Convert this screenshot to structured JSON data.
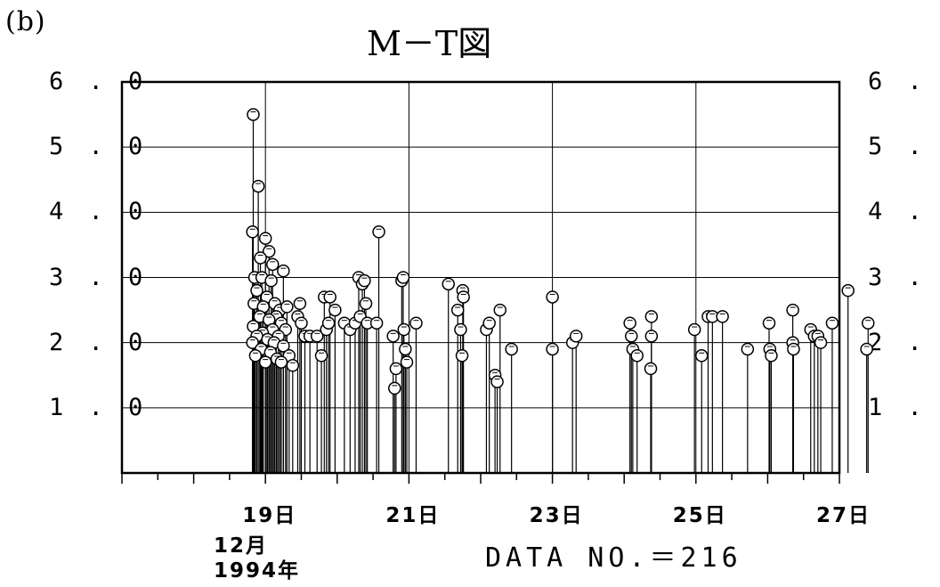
{
  "panel_label": "(b)",
  "chart_data": {
    "type": "scatter",
    "title": "M－T図",
    "xlabel": "",
    "ylabel": "",
    "xlim": [
      17.0,
      27.0
    ],
    "ylim": [
      0.0,
      6.0
    ],
    "grid": true,
    "stem": true,
    "y_ticks": [
      "6.0",
      "5.0",
      "4.0",
      "3.0",
      "2.0",
      "1.0"
    ],
    "y_ticks_right": [
      "6.0",
      "5.0",
      "4.0",
      "3.0",
      "2.0",
      "1.0"
    ],
    "x_tick_labels": [
      "19日",
      "21日",
      "23日",
      "25日",
      "27日"
    ],
    "x_sublabels": [
      "12月",
      "1994年"
    ],
    "annotation": "DATA NO.＝216",
    "points": [
      {
        "x": 18.83,
        "y": 5.5
      },
      {
        "x": 18.9,
        "y": 4.4
      },
      {
        "x": 18.82,
        "y": 3.7
      },
      {
        "x": 19.0,
        "y": 3.6
      },
      {
        "x": 19.05,
        "y": 3.4
      },
      {
        "x": 18.93,
        "y": 3.3
      },
      {
        "x": 19.1,
        "y": 3.2
      },
      {
        "x": 19.25,
        "y": 3.1
      },
      {
        "x": 18.85,
        "y": 3.0
      },
      {
        "x": 18.95,
        "y": 3.0
      },
      {
        "x": 19.08,
        "y": 2.95
      },
      {
        "x": 18.88,
        "y": 2.8
      },
      {
        "x": 19.02,
        "y": 2.7
      },
      {
        "x": 19.13,
        "y": 2.6
      },
      {
        "x": 18.84,
        "y": 2.6
      },
      {
        "x": 18.97,
        "y": 2.55
      },
      {
        "x": 19.2,
        "y": 2.5
      },
      {
        "x": 19.3,
        "y": 2.55
      },
      {
        "x": 19.15,
        "y": 2.4
      },
      {
        "x": 18.92,
        "y": 2.4
      },
      {
        "x": 19.05,
        "y": 2.35
      },
      {
        "x": 19.22,
        "y": 2.3
      },
      {
        "x": 18.83,
        "y": 2.25
      },
      {
        "x": 19.1,
        "y": 2.2
      },
      {
        "x": 18.96,
        "y": 2.15
      },
      {
        "x": 19.28,
        "y": 2.2
      },
      {
        "x": 18.88,
        "y": 2.1
      },
      {
        "x": 19.18,
        "y": 2.1
      },
      {
        "x": 19.03,
        "y": 2.05
      },
      {
        "x": 18.82,
        "y": 2.0
      },
      {
        "x": 19.12,
        "y": 2.0
      },
      {
        "x": 19.25,
        "y": 1.95
      },
      {
        "x": 18.94,
        "y": 1.9
      },
      {
        "x": 19.07,
        "y": 1.85
      },
      {
        "x": 19.33,
        "y": 1.8
      },
      {
        "x": 18.86,
        "y": 1.8
      },
      {
        "x": 19.16,
        "y": 1.75
      },
      {
        "x": 19.0,
        "y": 1.7
      },
      {
        "x": 19.38,
        "y": 1.65
      },
      {
        "x": 19.22,
        "y": 1.7
      },
      {
        "x": 19.48,
        "y": 2.6
      },
      {
        "x": 19.45,
        "y": 2.4
      },
      {
        "x": 19.5,
        "y": 2.3
      },
      {
        "x": 19.55,
        "y": 2.1
      },
      {
        "x": 19.62,
        "y": 2.1
      },
      {
        "x": 19.72,
        "y": 2.1
      },
      {
        "x": 19.78,
        "y": 1.8
      },
      {
        "x": 19.85,
        "y": 2.2
      },
      {
        "x": 19.82,
        "y": 2.7
      },
      {
        "x": 19.9,
        "y": 2.7
      },
      {
        "x": 19.88,
        "y": 2.3
      },
      {
        "x": 19.97,
        "y": 2.5
      },
      {
        "x": 20.1,
        "y": 2.3
      },
      {
        "x": 20.18,
        "y": 2.2
      },
      {
        "x": 20.25,
        "y": 2.3
      },
      {
        "x": 20.3,
        "y": 3.0
      },
      {
        "x": 20.35,
        "y": 2.9
      },
      {
        "x": 20.38,
        "y": 2.95
      },
      {
        "x": 20.32,
        "y": 2.4
      },
      {
        "x": 20.4,
        "y": 2.6
      },
      {
        "x": 20.42,
        "y": 2.3
      },
      {
        "x": 20.55,
        "y": 2.3
      },
      {
        "x": 20.58,
        "y": 3.7
      },
      {
        "x": 20.78,
        "y": 2.1
      },
      {
        "x": 20.82,
        "y": 1.6
      },
      {
        "x": 20.8,
        "y": 1.3
      },
      {
        "x": 20.9,
        "y": 2.95
      },
      {
        "x": 20.92,
        "y": 3.0
      },
      {
        "x": 20.93,
        "y": 2.2
      },
      {
        "x": 20.95,
        "y": 1.9
      },
      {
        "x": 20.97,
        "y": 1.7
      },
      {
        "x": 21.1,
        "y": 2.3
      },
      {
        "x": 21.55,
        "y": 2.9
      },
      {
        "x": 21.68,
        "y": 2.5
      },
      {
        "x": 21.72,
        "y": 2.2
      },
      {
        "x": 21.75,
        "y": 2.8
      },
      {
        "x": 21.76,
        "y": 2.7
      },
      {
        "x": 21.74,
        "y": 1.8
      },
      {
        "x": 22.08,
        "y": 2.2
      },
      {
        "x": 22.12,
        "y": 2.3
      },
      {
        "x": 22.2,
        "y": 1.5
      },
      {
        "x": 22.23,
        "y": 1.4
      },
      {
        "x": 22.27,
        "y": 2.5
      },
      {
        "x": 22.43,
        "y": 1.9
      },
      {
        "x": 23.0,
        "y": 2.7
      },
      {
        "x": 23.0,
        "y": 1.9
      },
      {
        "x": 23.28,
        "y": 2.0
      },
      {
        "x": 23.33,
        "y": 2.1
      },
      {
        "x": 24.08,
        "y": 2.3
      },
      {
        "x": 24.1,
        "y": 2.1
      },
      {
        "x": 24.12,
        "y": 1.9
      },
      {
        "x": 24.18,
        "y": 1.8
      },
      {
        "x": 24.38,
        "y": 2.4
      },
      {
        "x": 24.38,
        "y": 2.1
      },
      {
        "x": 24.37,
        "y": 1.6
      },
      {
        "x": 24.98,
        "y": 2.2
      },
      {
        "x": 25.08,
        "y": 1.8
      },
      {
        "x": 25.17,
        "y": 2.4
      },
      {
        "x": 25.23,
        "y": 2.4
      },
      {
        "x": 25.37,
        "y": 2.4
      },
      {
        "x": 25.72,
        "y": 1.9
      },
      {
        "x": 26.02,
        "y": 2.3
      },
      {
        "x": 26.03,
        "y": 1.9
      },
      {
        "x": 26.05,
        "y": 1.8
      },
      {
        "x": 26.35,
        "y": 2.5
      },
      {
        "x": 26.35,
        "y": 2.0
      },
      {
        "x": 26.36,
        "y": 1.9
      },
      {
        "x": 26.6,
        "y": 2.2
      },
      {
        "x": 26.65,
        "y": 2.1
      },
      {
        "x": 26.7,
        "y": 2.1
      },
      {
        "x": 26.74,
        "y": 2.0
      },
      {
        "x": 26.9,
        "y": 2.3
      },
      {
        "x": 27.12,
        "y": 2.8
      },
      {
        "x": 27.4,
        "y": 2.3
      },
      {
        "x": 27.38,
        "y": 1.9
      }
    ]
  }
}
